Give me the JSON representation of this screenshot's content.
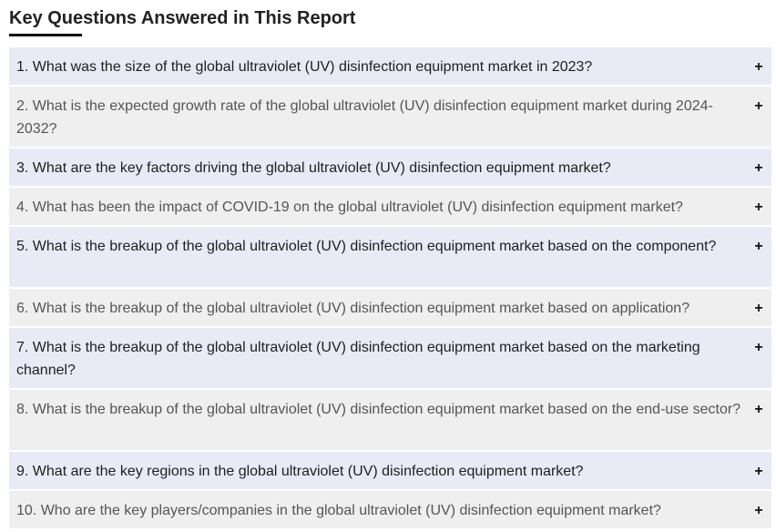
{
  "section": {
    "title": "Key Questions Answered in This Report"
  },
  "faq": {
    "expand_icon_glyph": "+",
    "items": [
      {
        "question": "1. What was the size of the global ultraviolet (UV) disinfection equipment market in 2023?"
      },
      {
        "question": "2. What is the expected growth rate of the global ultraviolet (UV) disinfection equipment market during 2024-2032?"
      },
      {
        "question": "3. What are the key factors driving the global ultraviolet (UV) disinfection equipment market?"
      },
      {
        "question": "4. What has been the impact of COVID-19 on the global ultraviolet (UV) disinfection equipment market?"
      },
      {
        "question": "5. What is the breakup of the global ultraviolet (UV) disinfection equipment market based on the component?"
      },
      {
        "question": "6. What is the breakup of the global ultraviolet (UV) disinfection equipment market based on application?"
      },
      {
        "question": "7. What is the breakup of the global ultraviolet (UV) disinfection equipment market based on the marketing channel?"
      },
      {
        "question": "8. What is the breakup of the global ultraviolet (UV) disinfection equipment market based on the end-use sector?"
      },
      {
        "question": "9. What are the key regions in the global ultraviolet (UV) disinfection equipment market?"
      },
      {
        "question": "10. Who are the key players/companies in the global ultraviolet (UV) disinfection equipment market?"
      }
    ]
  },
  "colors": {
    "row_odd_bg": "#e8eaf6",
    "row_even_bg": "#efefef",
    "title_underline": "#111111"
  }
}
